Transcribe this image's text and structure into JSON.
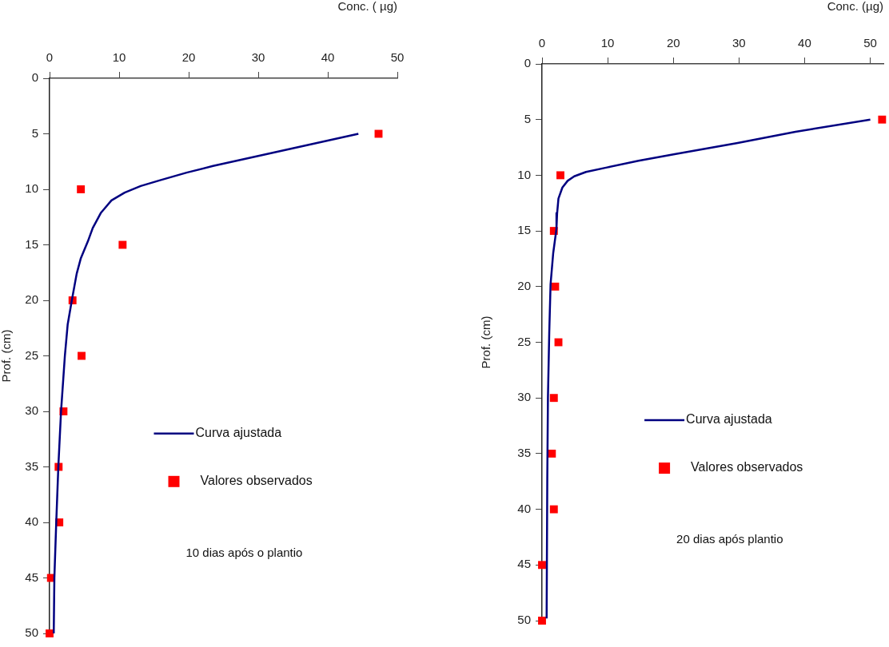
{
  "chart_data": [
    {
      "type": "scatter",
      "xlabel": "Conc. ( µg)",
      "ylabel": "Prof. (cm)",
      "xlim": [
        0,
        50
      ],
      "xticks": [
        0,
        10,
        20,
        30,
        40,
        50
      ],
      "ylim": [
        50,
        0
      ],
      "yticks": [
        0,
        5,
        10,
        15,
        20,
        25,
        30,
        35,
        40,
        45,
        50
      ],
      "grid": false,
      "legend": "right",
      "annotations": [
        "10 dias após o plantio"
      ],
      "series": [
        {
          "name": "Curva ajustada",
          "type": "line",
          "marker": "none",
          "color": "#000080",
          "x": [
            44.4,
            36.1,
            30,
            23.5,
            19.7,
            15.8,
            13.1,
            10.8,
            8.9,
            7.4,
            6.2,
            5.5,
            4.5,
            3.9,
            3.2,
            2.6,
            2.2,
            1.65,
            1.26,
            0.96,
            0.69,
            0.6
          ],
          "values": [
            5,
            6.15,
            7,
            7.9,
            8.5,
            9.2,
            9.7,
            10.3,
            11,
            12.1,
            13.5,
            14.7,
            16.2,
            17.6,
            20,
            22.2,
            25,
            30,
            35,
            40,
            45,
            50
          ]
        },
        {
          "name": "Valores observados",
          "type": "scatter",
          "marker": "square",
          "color": "#ff0000",
          "x": [
            47.3,
            4.5,
            10.5,
            3.3,
            4.6,
            2.0,
            1.3,
            1.4,
            0.2,
            0
          ],
          "values": [
            5,
            10,
            15,
            20,
            25,
            30,
            35,
            40,
            45,
            50
          ]
        }
      ]
    },
    {
      "type": "scatter",
      "xlabel": "Conc. (µg)",
      "ylabel": "Prof. (cm)",
      "xlim": [
        0,
        52
      ],
      "xticks": [
        0,
        10,
        20,
        30,
        40,
        50
      ],
      "ylim": [
        50,
        0
      ],
      "yticks": [
        0,
        5,
        10,
        15,
        20,
        25,
        30,
        35,
        40,
        45,
        50
      ],
      "grid": false,
      "legend": "right",
      "annotations": [
        "20 dias após plantio"
      ],
      "series": [
        {
          "name": "Curva ajustada",
          "type": "line",
          "marker": "none",
          "color": "#000080",
          "x": [
            50,
            38.6,
            29.8,
            20.2,
            14.7,
            9.9,
            6.7,
            4.9,
            3.9,
            3.1,
            2.5,
            2.3,
            2.2,
            1.7,
            1.3,
            1.1,
            0.9,
            0.8,
            0.7
          ],
          "values": [
            5,
            6.1,
            7.1,
            8.1,
            8.7,
            9.3,
            9.7,
            10.1,
            10.5,
            11.1,
            12.1,
            13.4,
            14.8,
            17,
            19.8,
            24.1,
            30,
            37.3,
            49.8
          ]
        },
        {
          "name": "Valores observados",
          "type": "scatter",
          "marker": "square",
          "color": "#ff0000",
          "x": [
            51.8,
            2.8,
            1.8,
            2.0,
            2.5,
            1.8,
            1.5,
            1.8,
            0,
            0
          ],
          "values": [
            5,
            10,
            15,
            20,
            25,
            30,
            35,
            40,
            45,
            50
          ]
        }
      ]
    }
  ]
}
